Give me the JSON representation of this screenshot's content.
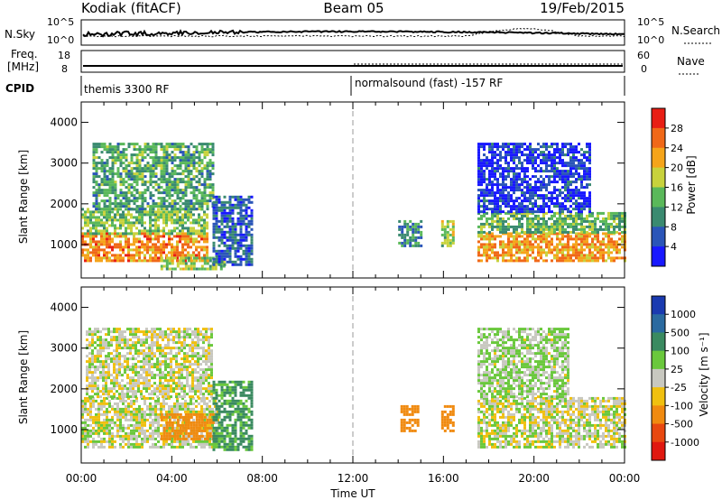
{
  "header": {
    "left": "Kodiak (fitACF)",
    "center": "Beam 05",
    "right": "19/Feb/2015"
  },
  "top_panels": {
    "nsky_label": "N.Sky",
    "nsky_ticks": [
      "10^5",
      "10^0"
    ],
    "nsearch_label": "N.Search",
    "nsearch_ticks": [
      "10^5",
      "10^0"
    ],
    "freq_label": "Freq.",
    "freq_unit": "[MHz]",
    "freq_ticks": [
      "18",
      "8"
    ],
    "nave_label": "Nave",
    "nave_ticks": [
      "60",
      "0"
    ],
    "cpid_label": "CPID",
    "cpid_segments": [
      {
        "text": "themis 3300 RF",
        "start_hour": 0
      },
      {
        "text": "normalsound (fast) -157 RF",
        "start_hour": 12
      }
    ]
  },
  "x_axis": {
    "label": "Time UT",
    "ticks": [
      "00:00",
      "04:00",
      "08:00",
      "12:00",
      "16:00",
      "20:00",
      "00:00"
    ],
    "range_hours": [
      0,
      24
    ]
  },
  "power_panel": {
    "ylabel": "Slant Range [km]",
    "yticks": [
      "1000",
      "2000",
      "3000",
      "4000"
    ],
    "colorbar_label": "Power [dB]",
    "colorbar_ticks": [
      "4",
      "8",
      "12",
      "16",
      "20",
      "24",
      "28"
    ],
    "colors": [
      "#1818ff",
      "#2a55b8",
      "#3a8a70",
      "#5ab85a",
      "#c8d23c",
      "#f5a41a",
      "#f06818",
      "#e81e14"
    ]
  },
  "velocity_panel": {
    "ylabel": "Slant Range [km]",
    "yticks": [
      "1000",
      "2000",
      "3000",
      "4000"
    ],
    "colorbar_label": "Velocity [m s⁻¹]",
    "colorbar_ticks": [
      "1000",
      "500",
      "100",
      "25",
      "-25",
      "-100",
      "-500",
      "-1000"
    ],
    "colors": [
      "#1a3ab0",
      "#2a6aa0",
      "#3a8a60",
      "#6ac83c",
      "#c8c8c0",
      "#f0c010",
      "#f08a10",
      "#e84810",
      "#e01810"
    ]
  },
  "chart_data": {
    "type": "heatmap",
    "x_unit": "hours UT",
    "y_unit": "km",
    "xlim": [
      0,
      24
    ],
    "ylim": [
      180,
      4500
    ],
    "power_regions": [
      {
        "t0": 0.0,
        "t1": 5.6,
        "r0": 600,
        "r1": 1300,
        "v": 26
      },
      {
        "t0": 0.0,
        "t1": 5.6,
        "r0": 1300,
        "r1": 1900,
        "v": 17
      },
      {
        "t0": 0.5,
        "t1": 5.8,
        "r0": 1900,
        "r1": 3500,
        "v": 14
      },
      {
        "t0": 3.5,
        "t1": 6.3,
        "r0": 400,
        "r1": 700,
        "v": 18
      },
      {
        "t0": 5.8,
        "t1": 7.5,
        "r0": 500,
        "r1": 2200,
        "v": 9
      },
      {
        "t0": 14.0,
        "t1": 15.0,
        "r0": 1000,
        "r1": 1600,
        "v": 12
      },
      {
        "t0": 15.9,
        "t1": 16.4,
        "r0": 1000,
        "r1": 1600,
        "v": 18
      },
      {
        "t0": 17.5,
        "t1": 24.0,
        "r0": 600,
        "r1": 1300,
        "v": 25
      },
      {
        "t0": 17.5,
        "t1": 24.0,
        "r0": 1300,
        "r1": 1800,
        "v": 15
      },
      {
        "t0": 17.5,
        "t1": 22.5,
        "r0": 1800,
        "r1": 3500,
        "v": 6
      }
    ],
    "velocity_regions": [
      {
        "t0": 0.0,
        "t1": 6.0,
        "r0": 600,
        "r1": 1800,
        "v": 0
      },
      {
        "t0": 0.2,
        "t1": 5.8,
        "r0": 1800,
        "r1": 3500,
        "v": 0
      },
      {
        "t0": 3.5,
        "t1": 5.8,
        "r0": 800,
        "r1": 1400,
        "v": -200
      },
      {
        "t0": 5.8,
        "t1": 7.5,
        "r0": 500,
        "r1": 2200,
        "v": 120
      },
      {
        "t0": 14.1,
        "t1": 14.9,
        "r0": 1000,
        "r1": 1600,
        "v": -300
      },
      {
        "t0": 15.9,
        "t1": 16.4,
        "r0": 1000,
        "r1": 1600,
        "v": -300
      },
      {
        "t0": 17.5,
        "t1": 24.0,
        "r0": 600,
        "r1": 1800,
        "v": 0
      },
      {
        "t0": 17.5,
        "t1": 21.5,
        "r0": 1800,
        "r1": 3500,
        "v": 30
      }
    ],
    "vertical_marker_hour": 12
  }
}
